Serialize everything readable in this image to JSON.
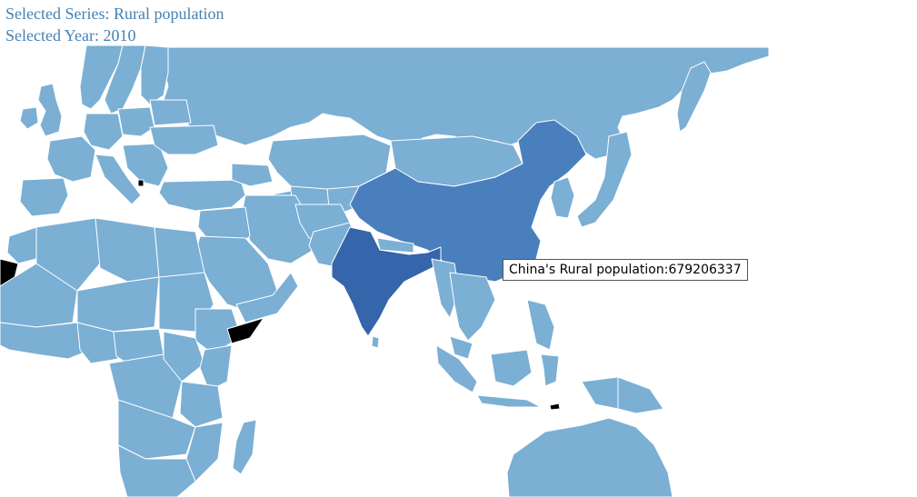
{
  "header": {
    "series_prefix": "Selected Series: ",
    "series_name": "Rural population",
    "year_prefix": "Selected Year: ",
    "year": "2010"
  },
  "map": {
    "colors": {
      "default_fill": "#7bafd4",
      "medium_fill": "#4a7fbe",
      "high_fill": "#3565aa",
      "no_data_fill": "#000000",
      "border": "#ffffff",
      "ocean": "#ffffff",
      "header_text": "#4682b4"
    },
    "highlighted_countries": [
      {
        "name": "China",
        "level": "medium"
      },
      {
        "name": "India",
        "level": "high"
      },
      {
        "name": "Somalia",
        "level": "no-data"
      },
      {
        "name": "Western Sahara",
        "level": "no-data"
      },
      {
        "name": "Kosovo",
        "level": "no-data"
      }
    ]
  },
  "tooltip": {
    "country": "China",
    "series": "Rural population",
    "value": "679206337",
    "text": "China's Rural population:679206337"
  }
}
